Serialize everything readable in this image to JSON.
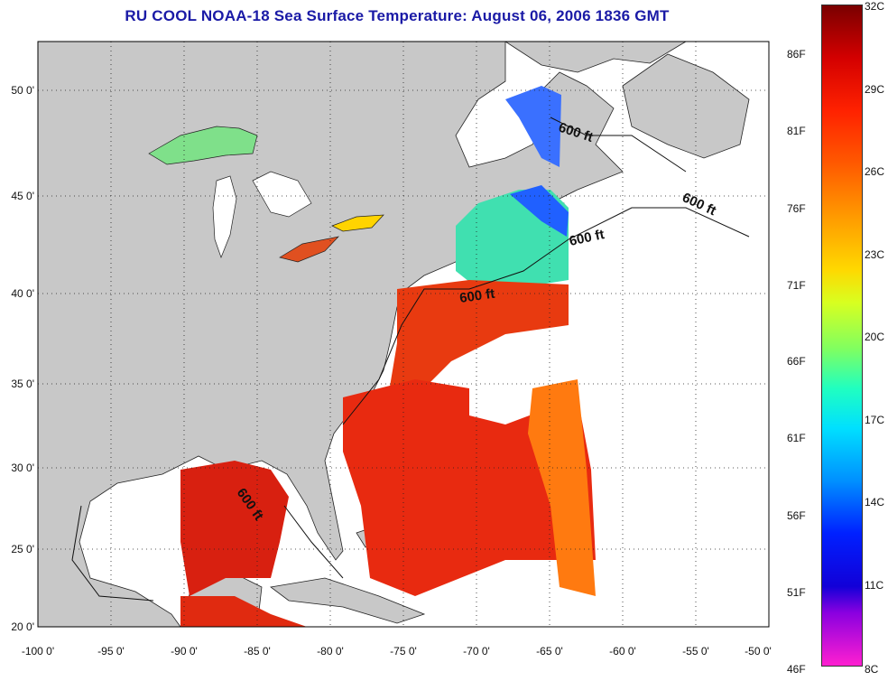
{
  "title": "RU COOL  NOAA-18  Sea Surface Temperature:  August 06, 2006 1836 GMT",
  "map": {
    "lon_labels": [
      "-100 0'",
      "-95 0'",
      "-90 0'",
      "-85 0'",
      "-80 0'",
      "-75 0'",
      "-70 0'",
      "-65 0'",
      "-60 0'",
      "-55 0'",
      "-50 0'"
    ],
    "lat_labels": [
      "50 0'",
      "45 0'",
      "40 0'",
      "35 0'",
      "30 0'",
      "25 0'",
      "20 0'"
    ],
    "lon_range": [
      -100,
      -50
    ],
    "lat_range": [
      20,
      52.5
    ],
    "contour_labels": [
      "600 ft",
      "600 ft",
      "600 ft",
      "600 ft",
      "600 ft"
    ]
  },
  "colorbar": {
    "fahrenheit_labels": [
      "86F",
      "81F",
      "76F",
      "71F",
      "66F",
      "61F",
      "56F",
      "51F",
      "46F"
    ],
    "celsius_labels": [
      "32C",
      "29C",
      "26C",
      "23C",
      "20C",
      "17C",
      "14C",
      "11C",
      "8C"
    ],
    "range_c": [
      8,
      32
    ],
    "range_f": [
      46,
      90
    ]
  },
  "colors": {
    "title": "#1a1aa6",
    "land": "#c8c8c8",
    "ocean_nodata": "#ffffff",
    "warm": "#e82a10",
    "cool": "#20d0e0"
  }
}
